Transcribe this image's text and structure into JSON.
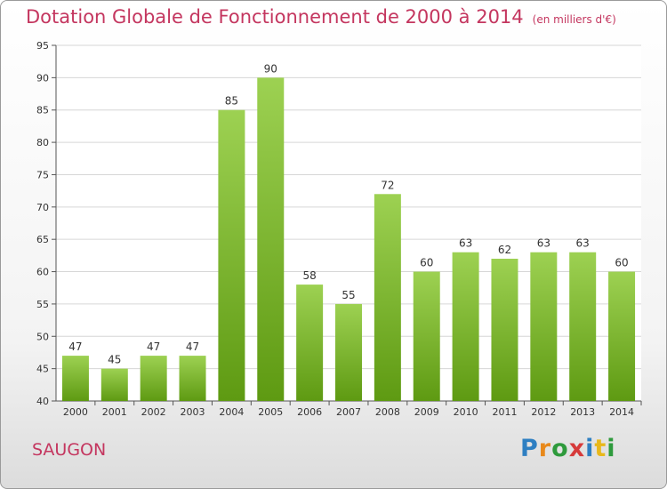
{
  "header": {
    "title": "Dotation Globale de Fonctionnement de 2000 à 2014",
    "subtitle": "(en milliers d'€)"
  },
  "footer": {
    "commune": "SAUGON",
    "logo": [
      "P",
      "r",
      "o",
      "x",
      "i",
      "t",
      "i"
    ]
  },
  "colors": {
    "title": "#c4365f",
    "bar_top": "#9dd152",
    "bar_bottom": "#5e9a12"
  },
  "chart_data": {
    "type": "bar",
    "title": "Dotation Globale de Fonctionnement de 2000 à 2014",
    "subtitle": "(en milliers d'€)",
    "xlabel": "",
    "ylabel": "",
    "categories": [
      "2000",
      "2001",
      "2002",
      "2003",
      "2004",
      "2005",
      "2006",
      "2007",
      "2008",
      "2009",
      "2010",
      "2011",
      "2012",
      "2013",
      "2014"
    ],
    "values": [
      47,
      45,
      47,
      47,
      85,
      90,
      58,
      55,
      72,
      60,
      63,
      62,
      63,
      63,
      60
    ],
    "ylim": [
      40,
      95
    ],
    "yticks": [
      40,
      45,
      50,
      55,
      60,
      65,
      70,
      75,
      80,
      85,
      90,
      95
    ],
    "grid": true,
    "legend": "none"
  }
}
